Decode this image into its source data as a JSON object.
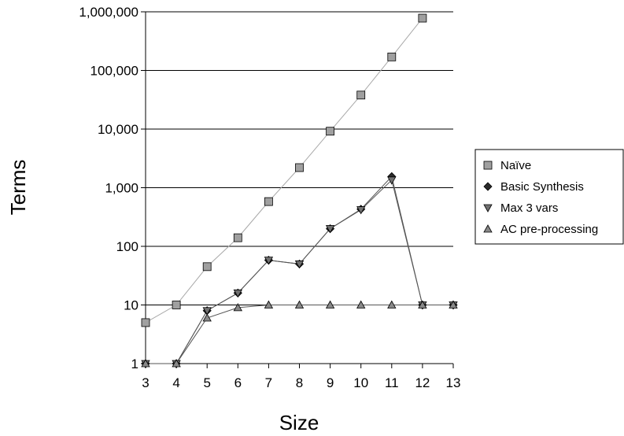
{
  "chart_data": {
    "type": "line",
    "xlabel": "Size",
    "ylabel": "Terms",
    "x": [
      3,
      4,
      5,
      6,
      7,
      8,
      9,
      10,
      11,
      12,
      13
    ],
    "x_tick_labels": [
      "3",
      "4",
      "5",
      "6",
      "7",
      "8",
      "9",
      "10",
      "11",
      "12",
      "13"
    ],
    "y_scale": "log",
    "ylim": [
      1,
      1000000
    ],
    "y_ticks": [
      1,
      10,
      100,
      1000,
      10000,
      100000,
      1000000
    ],
    "y_tick_labels": [
      "1",
      "10",
      "100",
      "1,000",
      "10,000",
      "100,000",
      "1,000,000"
    ],
    "grid": "horizontal major",
    "legend_position": "right",
    "series": [
      {
        "name": "Naïve",
        "marker": "square",
        "color": "#a0a0a0",
        "line_color": "#a8a8a8",
        "x": [
          3,
          4,
          5,
          6,
          7,
          8,
          9,
          10,
          11,
          12
        ],
        "values": [
          5,
          10,
          45,
          140,
          580,
          2200,
          9200,
          38000,
          170000,
          780000
        ]
      },
      {
        "name": "Basic Synthesis",
        "marker": "diamond",
        "color": "#2a2a2a",
        "line_color": "#555555",
        "x": [
          3,
          4,
          5,
          6,
          7,
          8,
          9,
          10,
          11,
          12,
          13
        ],
        "values": [
          1,
          1,
          8,
          16,
          58,
          50,
          200,
          430,
          1550,
          10,
          10
        ]
      },
      {
        "name": "Max 3 vars",
        "marker": "triangle-down",
        "color": "#707070",
        "line_color": "#555555",
        "x": [
          3,
          4,
          5,
          6,
          7,
          8,
          9,
          10,
          11,
          12,
          13
        ],
        "values": [
          1,
          1,
          8,
          16,
          58,
          50,
          200,
          420,
          1350,
          10,
          10
        ]
      },
      {
        "name": "AC pre-processing",
        "marker": "triangle-up",
        "color": "#888888",
        "line_color": "#555555",
        "x": [
          3,
          4,
          5,
          6,
          7,
          8,
          9,
          10,
          11,
          12,
          13
        ],
        "values": [
          1,
          1,
          6,
          9,
          10,
          10,
          10,
          10,
          10,
          10,
          10
        ]
      }
    ]
  }
}
